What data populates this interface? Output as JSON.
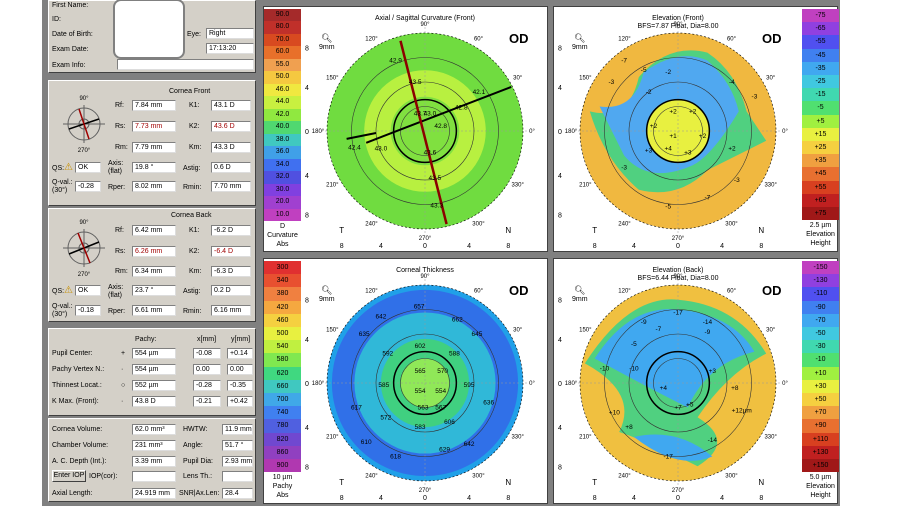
{
  "patient": {
    "first_name": "First Name:",
    "id": "ID:",
    "dob": "Date of Birth:",
    "exam_date": "Exam Date:",
    "exam_info": "Exam Info:",
    "eye_label": "Eye:",
    "eye": "Right",
    "time": "17:13:20"
  },
  "front": {
    "title": "Cornea Front",
    "rf": "7.84 mm",
    "rs": "7.73 mm",
    "rm": "7.79 mm",
    "k1": "43.1 D",
    "k2": "43.6 D",
    "km": "43.3 D",
    "qs": "OK",
    "axis": "19.8 °",
    "astig": "0.6 D",
    "qval": "-0.28",
    "rper": "8.02 mm",
    "rmin": "7.70 mm"
  },
  "back": {
    "title": "Cornea Back",
    "rf": "6.42 mm",
    "rs": "6.26 mm",
    "rm": "6.34 mm",
    "k1": "-6.2 D",
    "k2": "-6.4 D",
    "km": "-6.3 D",
    "qs": "OK",
    "axis": "23.7 °",
    "astig": "0.2 D",
    "qval": "-0.18",
    "rper": "6.61 mm",
    "rmin": "6.16 mm"
  },
  "labels": {
    "rf": "Rf:",
    "rs": "Rs:",
    "rm": "Rm:",
    "k1": "K1:",
    "k2": "K2:",
    "km": "Km:",
    "qs": "QS:",
    "axis": "Axis:",
    "flat": "(flat)",
    "astig": "Astig:",
    "qval": "Q-val.:",
    "q30": "(30°)",
    "rper": "Rper:",
    "rmin": "Rmin:",
    "pachy": "Pachy:",
    "xmm": "x[mm]",
    "ymm": "y[mm]",
    "a90": "90°",
    "a270": "270°"
  },
  "pachy": {
    "rows": [
      {
        "label": "Pupil Center:",
        "sym": "+",
        "val": "554 µm",
        "x": "-0.08",
        "y": "+0.14"
      },
      {
        "label": "Pachy Vertex N.:",
        "sym": "·",
        "val": "554 µm",
        "x": "0.00",
        "y": "0.00"
      },
      {
        "label": "Thinnest Locat.:",
        "sym": "○",
        "val": "552 µm",
        "x": "-0.28",
        "y": "-0.35"
      },
      {
        "label": "K Max. (Front):",
        "sym": "·",
        "val": "43.8 D",
        "x": "-0.21",
        "y": "+0.42"
      }
    ]
  },
  "vol": {
    "cv_l": "Cornea Volume:",
    "cv": "62.0 mm³",
    "hwtw_l": "HWTW:",
    "hwtw": "11.9 mm",
    "ch_l": "Chamber Volume:",
    "ch": "231 mm³",
    "ang_l": "Angle:",
    "ang": "51.7 °",
    "acd_l": "A. C. Depth (Int.):",
    "acd": "3.39 mm",
    "pd_l": "Pupil Dia:",
    "pd": "2.93 mm",
    "iop_btn": "Enter IOP",
    "iop_l": "IOP(cor):",
    "lens_l": "Lens Th.:",
    "al_l": "Axial Length:",
    "al": "24.919 mm",
    "snr_l": "SNR|Ax.Len:",
    "snr": "28.4"
  },
  "maps": [
    {
      "title": "Axial / Sagittal Curvature (Front)",
      "subtitle": "",
      "eye": "OD",
      "mm": "9mm",
      "ticks": [
        "8",
        "4",
        "0",
        "4",
        "8"
      ],
      "axes_side": [
        "T",
        "N"
      ],
      "cb_unit": "D",
      "cb_foot1": "Curvature",
      "cb_foot2": "Abs",
      "colorbar": [
        "90.0",
        "80.0",
        "70.0",
        "60.0",
        "55.0",
        "50.0",
        "46.0",
        "44.0",
        "42.0",
        "40.0",
        "38.0",
        "36.0",
        "34.0",
        "32.0",
        "30.0",
        "20.0",
        "10.0"
      ],
      "colorbar_colors": [
        "#a52a2a",
        "#c0302a",
        "#d84a20",
        "#e8702a",
        "#f0a050",
        "#f5c840",
        "#f0e840",
        "#c8f040",
        "#90e840",
        "#50d870",
        "#40c8c0",
        "#40a0e8",
        "#4070f0",
        "#5050e0",
        "#8040e0",
        "#a040d0",
        "#c040c0"
      ],
      "values": [
        "42.9",
        "43.5",
        "42.1",
        "43.7",
        "43.0",
        "42.8",
        "42.4",
        "43.0",
        "43.6",
        "43.5",
        "43.3",
        "42.8"
      ]
    },
    {
      "title": "Elevation (Front)",
      "subtitle": "BFS=7.87 Float, Dia=8.00",
      "eye": "OD",
      "mm": "9mm",
      "ticks": [
        "8",
        "4",
        "0",
        "4",
        "8"
      ],
      "axes_side": [
        "T",
        "N"
      ],
      "cb_unit": "2.5 µm",
      "cb_foot1": "Elevation",
      "cb_foot2": "Height",
      "colorbar": [
        "-75",
        "-65",
        "-55",
        "-45",
        "-35",
        "-25",
        "-15",
        "-5",
        "+5",
        "+15",
        "+25",
        "+35",
        "+45",
        "+55",
        "+65",
        "+75"
      ],
      "colorbar_colors": [
        "#c040c0",
        "#9040e0",
        "#5050f0",
        "#4080f0",
        "#40a8f0",
        "#40c8e0",
        "#40d8b0",
        "#50e070",
        "#a0f040",
        "#e8f040",
        "#f5d040",
        "#f0a040",
        "#e87030",
        "#d84020",
        "#c02020",
        "#a01818"
      ],
      "values": [
        "-7",
        "-5",
        "-3",
        "-2",
        "+2",
        "+2",
        "+2",
        "+2",
        "+3",
        "+4",
        "+3",
        "+2",
        "-3",
        "-4",
        "-2",
        "-3",
        "-5",
        "-7",
        "-3",
        "+1"
      ]
    },
    {
      "title": "Corneal Thickness",
      "subtitle": "",
      "eye": "OD",
      "mm": "9mm",
      "ticks": [
        "8",
        "4",
        "0",
        "4",
        "8"
      ],
      "axes_side": [
        "T",
        "N"
      ],
      "cb_unit": "10 µm",
      "cb_foot1": "Pachy",
      "cb_foot2": "Abs",
      "colorbar": [
        "300",
        "340",
        "380",
        "420",
        "460",
        "500",
        "540",
        "580",
        "620",
        "660",
        "700",
        "740",
        "780",
        "820",
        "860",
        "900"
      ],
      "colorbar_colors": [
        "#e03030",
        "#e85030",
        "#f08040",
        "#f5a840",
        "#f5d040",
        "#e8f040",
        "#c0f040",
        "#80e850",
        "#40d880",
        "#40c8c0",
        "#40a8e8",
        "#4080f0",
        "#5060e0",
        "#7048d0",
        "#9040c0",
        "#b038b0"
      ],
      "values": [
        "657",
        "642",
        "662",
        "592",
        "602",
        "588",
        "645",
        "635",
        "565",
        "570",
        "595",
        "585",
        "554",
        "554",
        "563",
        "567",
        "617",
        "572",
        "583",
        "606",
        "610",
        "618",
        "629",
        "642",
        "636"
      ]
    },
    {
      "title": "Elevation (Back)",
      "subtitle": "BFS=6.44 Float, Dia=8.00",
      "eye": "OD",
      "mm": "9mm",
      "ticks": [
        "8",
        "4",
        "0",
        "4",
        "8"
      ],
      "axes_side": [
        "T",
        "N"
      ],
      "cb_unit": "5.0 µm",
      "cb_foot1": "Elevation",
      "cb_foot2": "Height",
      "colorbar": [
        "-150",
        "-130",
        "-110",
        "-90",
        "-70",
        "-50",
        "-30",
        "-10",
        "+10",
        "+30",
        "+50",
        "+70",
        "+90",
        "+110",
        "+130",
        "+150"
      ],
      "colorbar_colors": [
        "#c040c0",
        "#9040e0",
        "#5050f0",
        "#4080f0",
        "#40a8f0",
        "#40c8e0",
        "#40d8b0",
        "#50e070",
        "#a0f040",
        "#e8f040",
        "#f5d040",
        "#f0a040",
        "#e87030",
        "#d84020",
        "#c02020",
        "#a01818"
      ],
      "values": [
        "-17",
        "-9",
        "-14",
        "-5",
        "-7",
        "-10",
        "-10",
        "+3",
        "+8",
        "+7",
        "+5",
        "+8",
        "+10",
        "-9",
        "-14",
        "-17",
        "+4",
        "+12µm"
      ]
    }
  ]
}
